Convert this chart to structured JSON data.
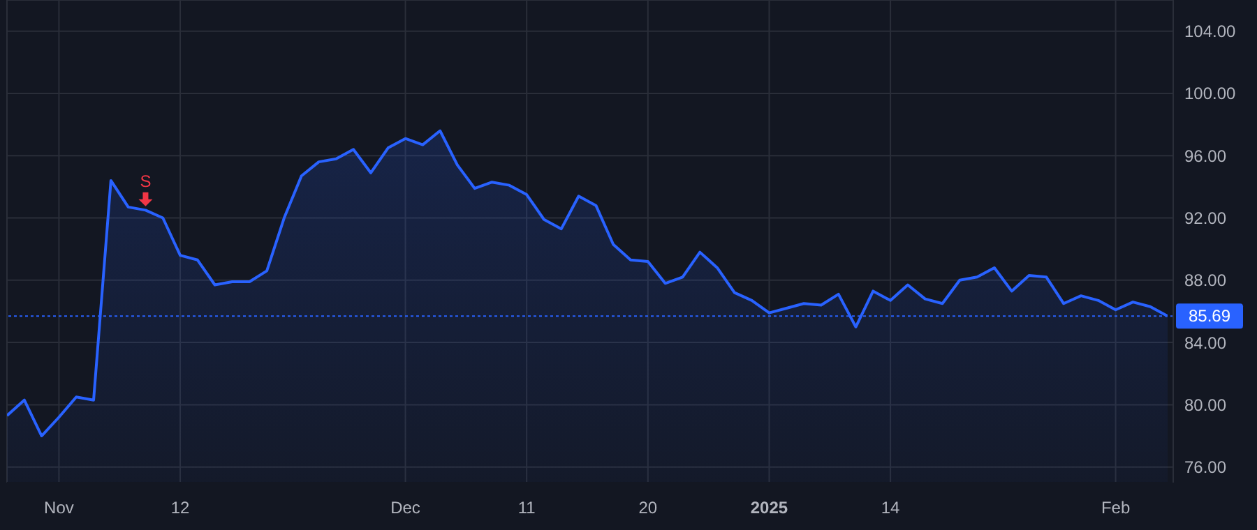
{
  "chart_data": {
    "type": "area",
    "categories": [
      null,
      null,
      null,
      "Nov",
      null,
      null,
      null,
      null,
      null,
      null,
      "12",
      null,
      null,
      null,
      null,
      null,
      null,
      null,
      null,
      null,
      null,
      null,
      null,
      "Dec",
      null,
      null,
      null,
      null,
      null,
      null,
      "11",
      null,
      null,
      null,
      null,
      null,
      null,
      "20",
      null,
      null,
      null,
      null,
      null,
      null,
      "2025",
      null,
      null,
      null,
      null,
      null,
      null,
      "14",
      null,
      null,
      null,
      null,
      null,
      null,
      null,
      null,
      null,
      null,
      null,
      null,
      "Feb",
      null,
      null,
      null
    ],
    "series": [
      {
        "color": "#2962ff",
        "values": [
          79.3,
          80.3,
          78.0,
          79.2,
          80.5,
          80.3,
          94.4,
          92.7,
          92.5,
          92.0,
          89.6,
          89.3,
          87.7,
          87.9,
          87.9,
          88.6,
          92.0,
          94.7,
          95.6,
          95.8,
          96.4,
          94.9,
          96.5,
          97.1,
          96.7,
          97.6,
          95.4,
          93.9,
          94.3,
          94.1,
          93.5,
          91.9,
          91.3,
          93.4,
          92.8,
          90.3,
          89.3,
          89.2,
          87.8,
          88.2,
          89.8,
          88.8,
          87.2,
          86.7,
          85.9,
          86.2,
          86.5,
          86.4,
          87.1,
          85.0,
          87.3,
          86.7,
          87.7,
          86.8,
          86.5,
          88.0,
          88.2,
          88.8,
          87.3,
          88.3,
          88.2,
          86.5,
          87.0,
          86.7,
          86.1,
          86.6,
          86.3,
          85.7
        ]
      },
      {
        "type": "scatter",
        "color": "#f23645",
        "values": [
          null,
          null,
          null,
          null,
          null,
          null,
          null,
          null,
          93.2,
          null,
          null,
          null,
          null,
          null,
          null,
          null,
          null,
          null,
          null,
          null,
          null,
          null,
          null,
          null,
          null,
          null,
          null,
          null,
          null,
          null,
          null,
          null,
          null,
          null,
          null,
          null,
          null,
          null,
          null,
          null,
          null,
          null,
          null,
          null,
          null,
          null,
          null,
          null,
          null,
          null,
          null,
          null,
          null,
          null,
          null,
          null,
          null,
          null,
          null,
          null,
          null,
          null,
          null,
          null,
          null,
          null,
          null,
          null
        ],
        "value_labels": [
          null,
          null,
          null,
          null,
          null,
          null,
          null,
          null,
          "S",
          null,
          null,
          null,
          null,
          null,
          null,
          null,
          null,
          null,
          null,
          null,
          null,
          null,
          null,
          null,
          null,
          null,
          null,
          null,
          null,
          null,
          null,
          null,
          null,
          null,
          null,
          null,
          null,
          null,
          null,
          null,
          null,
          null,
          null,
          null,
          null,
          null,
          null,
          null,
          null,
          null,
          null,
          null,
          null,
          null,
          null,
          null,
          null,
          null,
          null,
          null,
          null,
          null,
          null,
          null,
          null,
          null,
          null,
          null
        ]
      }
    ],
    "ylim": [
      75,
      106
    ],
    "yticks": [
      {
        "value": 76,
        "label": "76.00"
      },
      {
        "value": 80,
        "label": "80.00"
      },
      {
        "value": 84,
        "label": "84.00"
      },
      {
        "value": 88,
        "label": "88.00"
      },
      {
        "value": 92,
        "label": "92.00"
      },
      {
        "value": 96,
        "label": "96.00"
      },
      {
        "value": 100,
        "label": "100.00"
      },
      {
        "value": 104,
        "label": "104.00"
      }
    ],
    "ref_lines": [
      {
        "axis": "y",
        "value": 85.69,
        "label": "85.69",
        "color": "#2962ff",
        "line_style": "dotted"
      }
    ],
    "grid": true
  }
}
